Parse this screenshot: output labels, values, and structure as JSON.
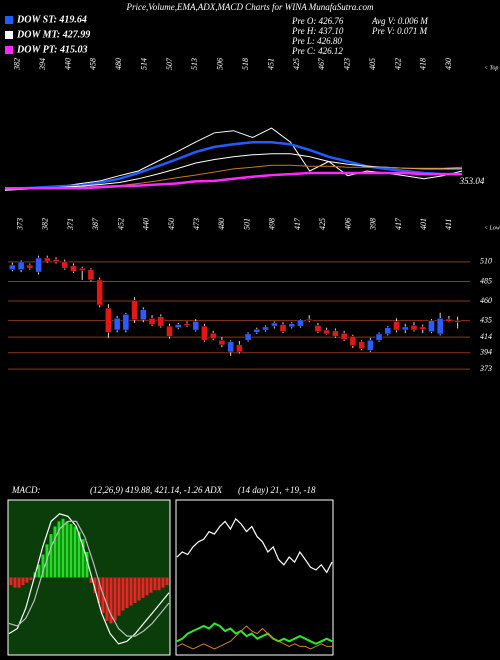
{
  "header": {
    "title": "Price,Volume,EMA,ADX,MACD Charts for WINA MunafaSutra.com",
    "info": [
      "Pre  O: 426.76",
      "Pre  H: 437.10",
      "Pre  L: 426.80",
      "Pre  C: 426.12",
      "Avg  V: 0.006  M",
      "Pre  V: 0.071 M"
    ]
  },
  "chart_data": [
    {
      "type": "line",
      "side_label": "< Top",
      "annotation": "353.04",
      "top_labels": [
        382,
        394,
        440,
        458,
        480,
        514,
        507,
        513,
        506,
        518,
        451,
        425,
        467,
        423,
        405,
        422,
        418,
        430
      ],
      "ylim": [
        340,
        560
      ],
      "series": [
        {
          "color": "#ffffff",
          "values": [
            349,
            353,
            355,
            357,
            362,
            367,
            377,
            386,
            404,
            422,
            441,
            459,
            463,
            450,
            468,
            441,
            386,
            404,
            377,
            386,
            382,
            377,
            371,
            377,
            386
          ]
        },
        {
          "name": "DOW ST: 419.64",
          "color": "#1e5eff",
          "values": [
            353,
            353,
            355,
            357,
            358,
            364,
            371,
            382,
            395,
            408,
            422,
            432,
            437,
            441,
            441,
            437,
            426,
            413,
            404,
            395,
            390,
            386,
            382,
            380,
            380
          ]
        },
        {
          "name": "DOW MT: 427.99",
          "color": "#ffffff",
          "values": [
            349,
            351,
            353,
            355,
            357,
            360,
            364,
            371,
            380,
            390,
            401,
            408,
            413,
            417,
            419,
            419,
            413,
            404,
            399,
            395,
            393,
            391,
            390,
            390,
            390
          ]
        },
        {
          "color": "#c8781e",
          "values": [
            351,
            351,
            353,
            353,
            355,
            357,
            358,
            362,
            367,
            373,
            378,
            384,
            390,
            393,
            397,
            397,
            395,
            395,
            393,
            393,
            393,
            391,
            391,
            391,
            393
          ]
        },
        {
          "name": "DOW PT: 415.03",
          "color": "#ff28ff",
          "values": [
            353,
            353,
            353,
            353,
            353,
            355,
            357,
            358,
            360,
            362,
            366,
            367,
            371,
            375,
            378,
            380,
            382,
            382,
            382,
            382,
            382,
            382,
            380,
            380,
            380
          ]
        }
      ]
    },
    {
      "type": "candlestick",
      "side_label": "< Lower",
      "top_labels": [
        373,
        382,
        371,
        387,
        452,
        440,
        450,
        473,
        480,
        501,
        498,
        417,
        425,
        406,
        398,
        417,
        401,
        411
      ],
      "ylim": [
        340,
        538
      ],
      "yticks": [
        510,
        485,
        460,
        435,
        414,
        394,
        373
      ],
      "grid_color": "#8b3a1a",
      "up_color": "#2a5cff",
      "down_color": "#e01818",
      "open": [
        500,
        500,
        506,
        497,
        515,
        513,
        510,
        505,
        502,
        500,
        487,
        451,
        423,
        423,
        461,
        436,
        438,
        440,
        428,
        426,
        431,
        423,
        428,
        419,
        410,
        395,
        404,
        410,
        420,
        423,
        428,
        430,
        427,
        428,
        437,
        429,
        423,
        422,
        419,
        415,
        408,
        397,
        410,
        418,
        434,
        423,
        429,
        427,
        421,
        418,
        437,
        435
      ],
      "high": [
        509,
        512,
        508,
        518,
        518,
        516,
        513,
        508,
        504,
        502,
        490,
        456,
        441,
        445,
        465,
        452,
        442,
        443,
        431,
        432,
        434,
        437,
        431,
        422,
        414,
        410,
        409,
        420,
        426,
        429,
        434,
        433,
        433,
        437,
        442,
        432,
        426,
        425,
        422,
        417,
        410,
        413,
        420,
        428,
        438,
        431,
        433,
        430,
        437,
        445,
        441,
        440
      ],
      "low": [
        498,
        497,
        500,
        494,
        509,
        508,
        500,
        496,
        487,
        485,
        452,
        413,
        420,
        420,
        432,
        433,
        428,
        426,
        412,
        424,
        427,
        421,
        408,
        410,
        401,
        390,
        393,
        408,
        418,
        421,
        425,
        419,
        425,
        426,
        433,
        419,
        417,
        413,
        409,
        400,
        397,
        395,
        408,
        416,
        420,
        419,
        421,
        419,
        419,
        416,
        433,
        425
      ],
      "close": [
        506,
        510,
        502,
        515,
        511,
        510,
        502,
        498,
        499,
        487,
        455,
        420,
        438,
        443,
        436,
        449,
        430,
        428,
        415,
        430,
        429,
        434,
        410,
        412,
        404,
        408,
        395,
        418,
        424,
        427,
        432,
        421,
        431,
        436,
        435,
        421,
        418,
        415,
        411,
        403,
        399,
        410,
        418,
        426,
        423,
        427,
        423,
        424,
        435,
        438,
        434,
        433
      ]
    },
    {
      "type": "bar",
      "label": "MACD:",
      "title": "(12,26,9) 419.88, 421.14, -1.26 ADX",
      "ylim": [
        -30,
        30
      ],
      "up_color": "#22dd22",
      "down_color": "#ee2222",
      "values": [
        -3,
        -4,
        -4,
        -3,
        -2,
        -1,
        2,
        5,
        9,
        13,
        17,
        20,
        22,
        23,
        22,
        21,
        20,
        18,
        15,
        10,
        -2,
        -6,
        -10,
        -14,
        -17,
        -18,
        -17,
        -15,
        -13,
        -12,
        -11,
        -10,
        -9,
        -8,
        -7,
        -6,
        -5,
        -5,
        -4,
        -3
      ],
      "series": [
        {
          "color": "#ffffff",
          "values": [
            -22,
            -20,
            -12,
            0,
            12,
            22,
            25,
            24,
            20,
            10,
            -2,
            -14,
            -22,
            -26,
            -25,
            -22,
            -18,
            -14,
            -10,
            -6
          ]
        },
        {
          "color": "#bbbbbb",
          "values": [
            -18,
            -19,
            -16,
            -9,
            2,
            12,
            19,
            22,
            22,
            16,
            6,
            -5,
            -14,
            -20,
            -23,
            -23,
            -21,
            -18,
            -14,
            -10
          ]
        }
      ]
    },
    {
      "type": "line",
      "title": "(14 day) 21, +19, -18",
      "ylim": [
        0,
        60
      ],
      "series": [
        {
          "color": "#ffffff",
          "values": [
            38,
            40,
            39,
            42,
            44,
            45,
            48,
            47,
            50,
            52,
            49,
            53,
            51,
            48,
            50,
            46,
            44,
            40,
            42,
            37,
            35,
            38,
            36,
            40,
            37,
            34,
            33,
            35,
            32,
            36
          ]
        },
        {
          "color": "#22ee22",
          "values": [
            5,
            6,
            8,
            9,
            10,
            11,
            10,
            12,
            11,
            9,
            10,
            8,
            9,
            7,
            8,
            6,
            7,
            8,
            6,
            5,
            6,
            5,
            6,
            7,
            6,
            5,
            4,
            5,
            6,
            5
          ]
        },
        {
          "color": "#d88020",
          "values": [
            3,
            4,
            3,
            2,
            3,
            4,
            3,
            2,
            3,
            4,
            5,
            7,
            9,
            11,
            9,
            8,
            10,
            8,
            6,
            5,
            4,
            3,
            4,
            3,
            3,
            2,
            3,
            4,
            3,
            3
          ]
        }
      ]
    }
  ]
}
